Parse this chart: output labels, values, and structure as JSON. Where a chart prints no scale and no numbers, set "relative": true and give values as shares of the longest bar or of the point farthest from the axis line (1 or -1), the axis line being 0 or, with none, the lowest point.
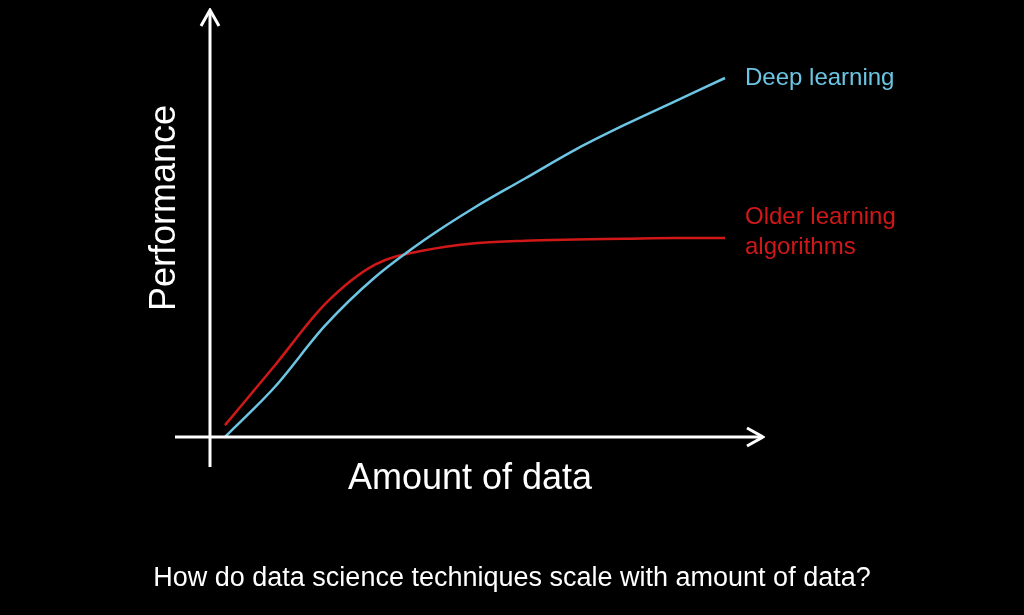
{
  "chart_data": {
    "type": "line",
    "relative": true,
    "xlabel": "Amount of data",
    "ylabel": "Performance",
    "annotations": [
      "How do data science techniques scale with amount of data?"
    ],
    "legend": false,
    "grid": false,
    "marker": "none",
    "categories": [
      null,
      null,
      null,
      null,
      null,
      null,
      null,
      null,
      null,
      null,
      null
    ],
    "series": [
      {
        "name": "Deep learning",
        "color": "#6cc5e3",
        "values": [
          0,
          0.14,
          0.31,
          0.445,
          0.55,
          0.64,
          0.72,
          0.8,
          0.87,
          0.935,
          1
        ]
      },
      {
        "name": "Older learning algorithms",
        "color": "#d01818",
        "values": [
          0.033,
          0.2,
          0.37,
          0.48,
          0.52,
          0.54,
          0.547,
          0.55,
          0.552,
          0.554,
          0.554
        ]
      }
    ]
  }
}
